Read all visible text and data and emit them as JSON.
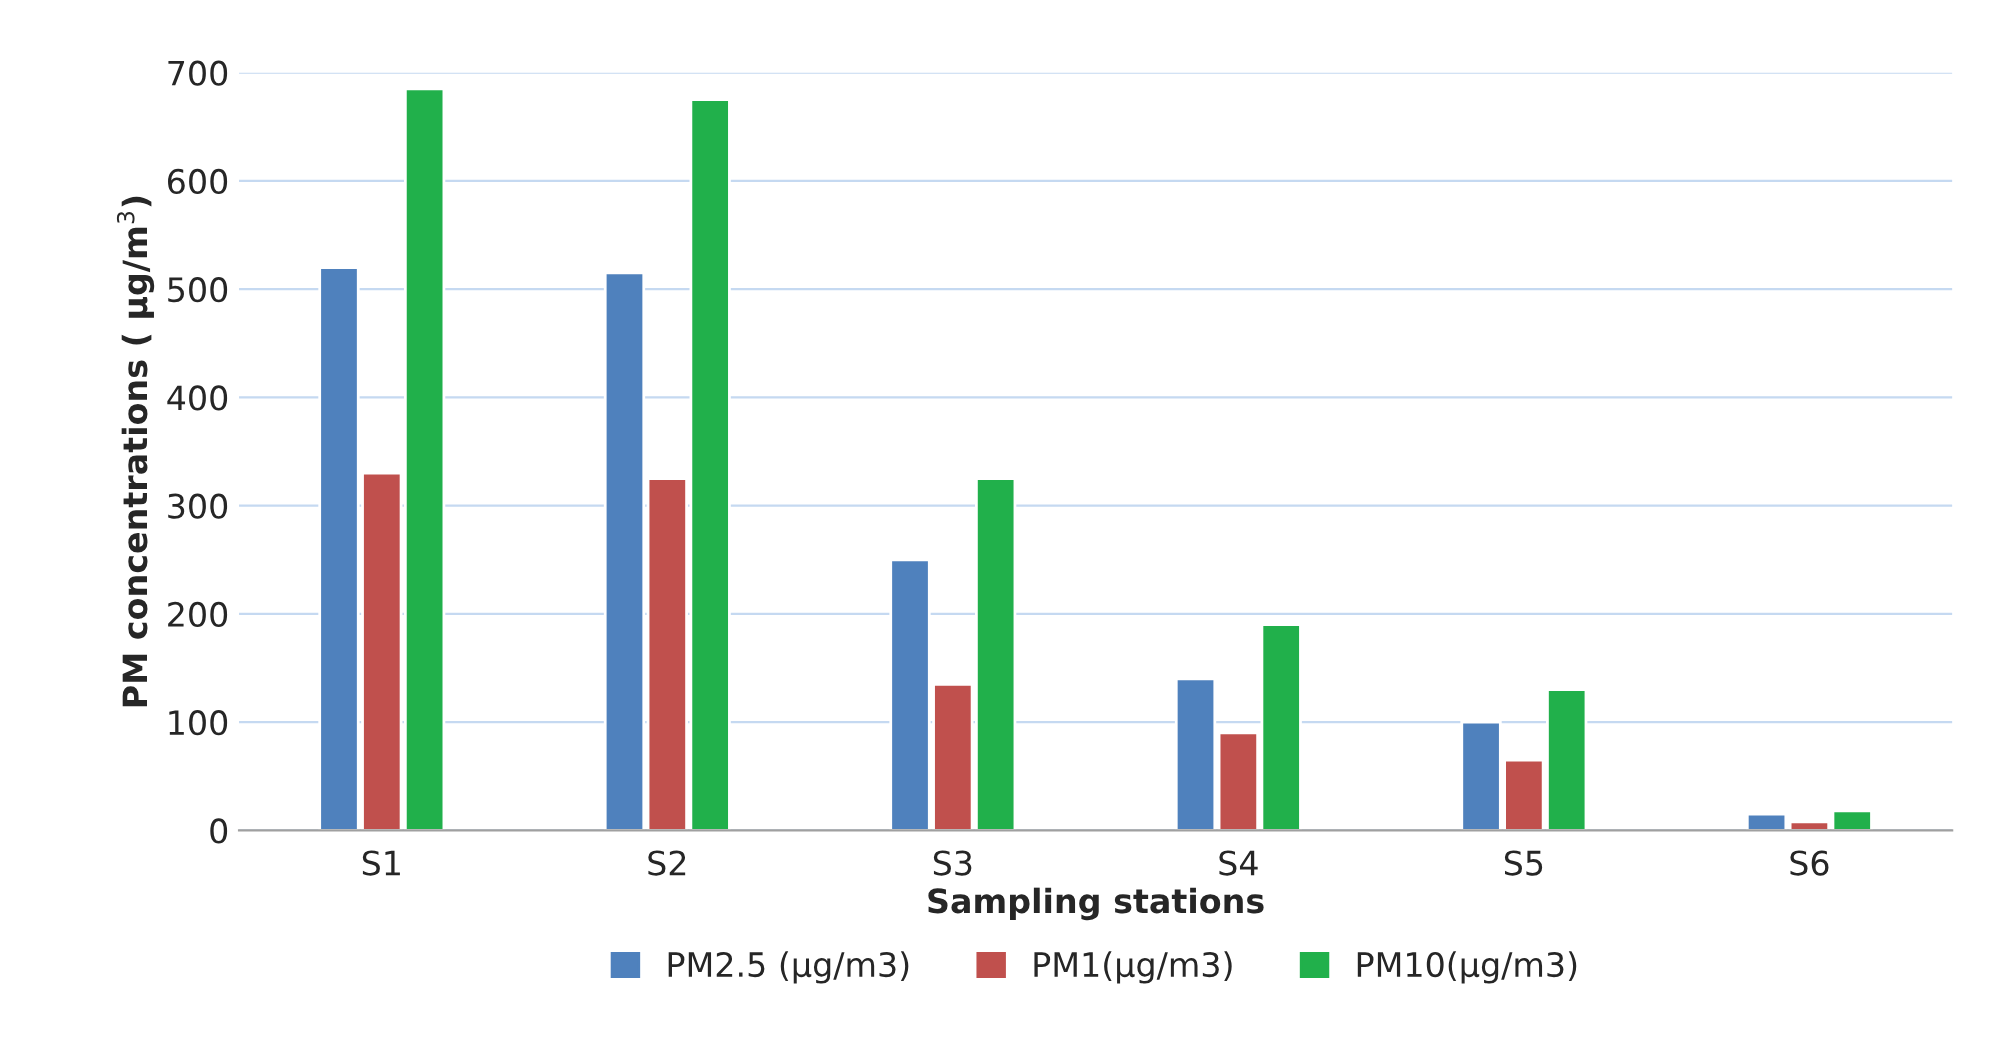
{
  "chart_data": {
    "type": "bar",
    "xlabel": "Sampling stations",
    "ylabel": "PM concentrations ( µg/m$^{3}$)",
    "categories": [
      "S1",
      "S2",
      "S3",
      "S4",
      "S5",
      "S6"
    ],
    "series": [
      {
        "name": "PM2.5 (µg/m3)",
        "color": "#4f81bd",
        "values": [
          520,
          515,
          250,
          140,
          100,
          15
        ]
      },
      {
        "name": "PM1(µg/m3)",
        "color": "#c0504d",
        "values": [
          330,
          325,
          135,
          90,
          65,
          8
        ]
      },
      {
        "name": "PM10(µg/m3)",
        "color": "#21b04b",
        "values": [
          685,
          675,
          325,
          190,
          130,
          18
        ]
      }
    ],
    "ylim": [
      0,
      700
    ],
    "yticks": [
      0,
      100,
      200,
      300,
      400,
      500,
      600,
      700
    ],
    "grid": "y",
    "legend": "bottom"
  }
}
